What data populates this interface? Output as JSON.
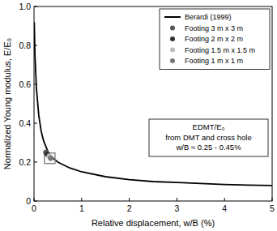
{
  "chart_data": {
    "type": "line",
    "x_label": "Relative displacement, w/B (%)",
    "y_label": "Normalized Young modulus, E/E₀",
    "xlim": [
      0,
      5
    ],
    "ylim": [
      0,
      1
    ],
    "xticks": [
      0,
      1,
      2,
      3,
      4,
      5
    ],
    "yticks": [
      0,
      0.2,
      0.4,
      0.6,
      0.8,
      {
        "value": 1,
        "label": "1.0"
      }
    ],
    "legend": "upper right",
    "annotation": [
      "EDMT/E₀",
      "from DMT and cross hole",
      "w/B ≈ 0.25 - 0.45%"
    ],
    "series": [
      {
        "name": "Berardi (1999)",
        "type": "line",
        "color": "#000000",
        "x": [
          0.005,
          0.02,
          0.05,
          0.1,
          0.15,
          0.2,
          0.3,
          0.4,
          0.5,
          0.75,
          1.0,
          1.5,
          2.0,
          2.5,
          3.0,
          3.5,
          4.0,
          4.5,
          5.0
        ],
        "values": [
          0.92,
          0.75,
          0.58,
          0.44,
          0.36,
          0.31,
          0.25,
          0.22,
          0.2,
          0.17,
          0.15,
          0.125,
          0.11,
          0.1,
          0.095,
          0.09,
          0.085,
          0.082,
          0.08
        ]
      },
      {
        "type": "scatter",
        "marker": "square",
        "color": "#888888",
        "x": [
          0.33
        ],
        "values": [
          0.22
        ]
      },
      {
        "name": "Footing 3 m x 3 m",
        "type": "scatter",
        "marker": "circle",
        "color": "#555555",
        "x": [
          0.25
        ],
        "values": [
          0.25
        ]
      },
      {
        "name": "Footing 2 m x 2 m",
        "type": "scatter",
        "marker": "circle",
        "color": "#333333",
        "x": [
          0.28
        ],
        "values": [
          0.24
        ]
      },
      {
        "name": "Footing 1.5 m x 1.5 m",
        "type": "scatter",
        "marker": "circle",
        "color": "#bbbbbb",
        "x": [
          0.32
        ],
        "values": [
          0.23
        ]
      },
      {
        "name": "Footing 1 m x 1 m",
        "type": "scatter",
        "marker": "circle",
        "color": "#777777",
        "x": [
          0.35
        ],
        "values": [
          0.22
        ]
      }
    ]
  }
}
